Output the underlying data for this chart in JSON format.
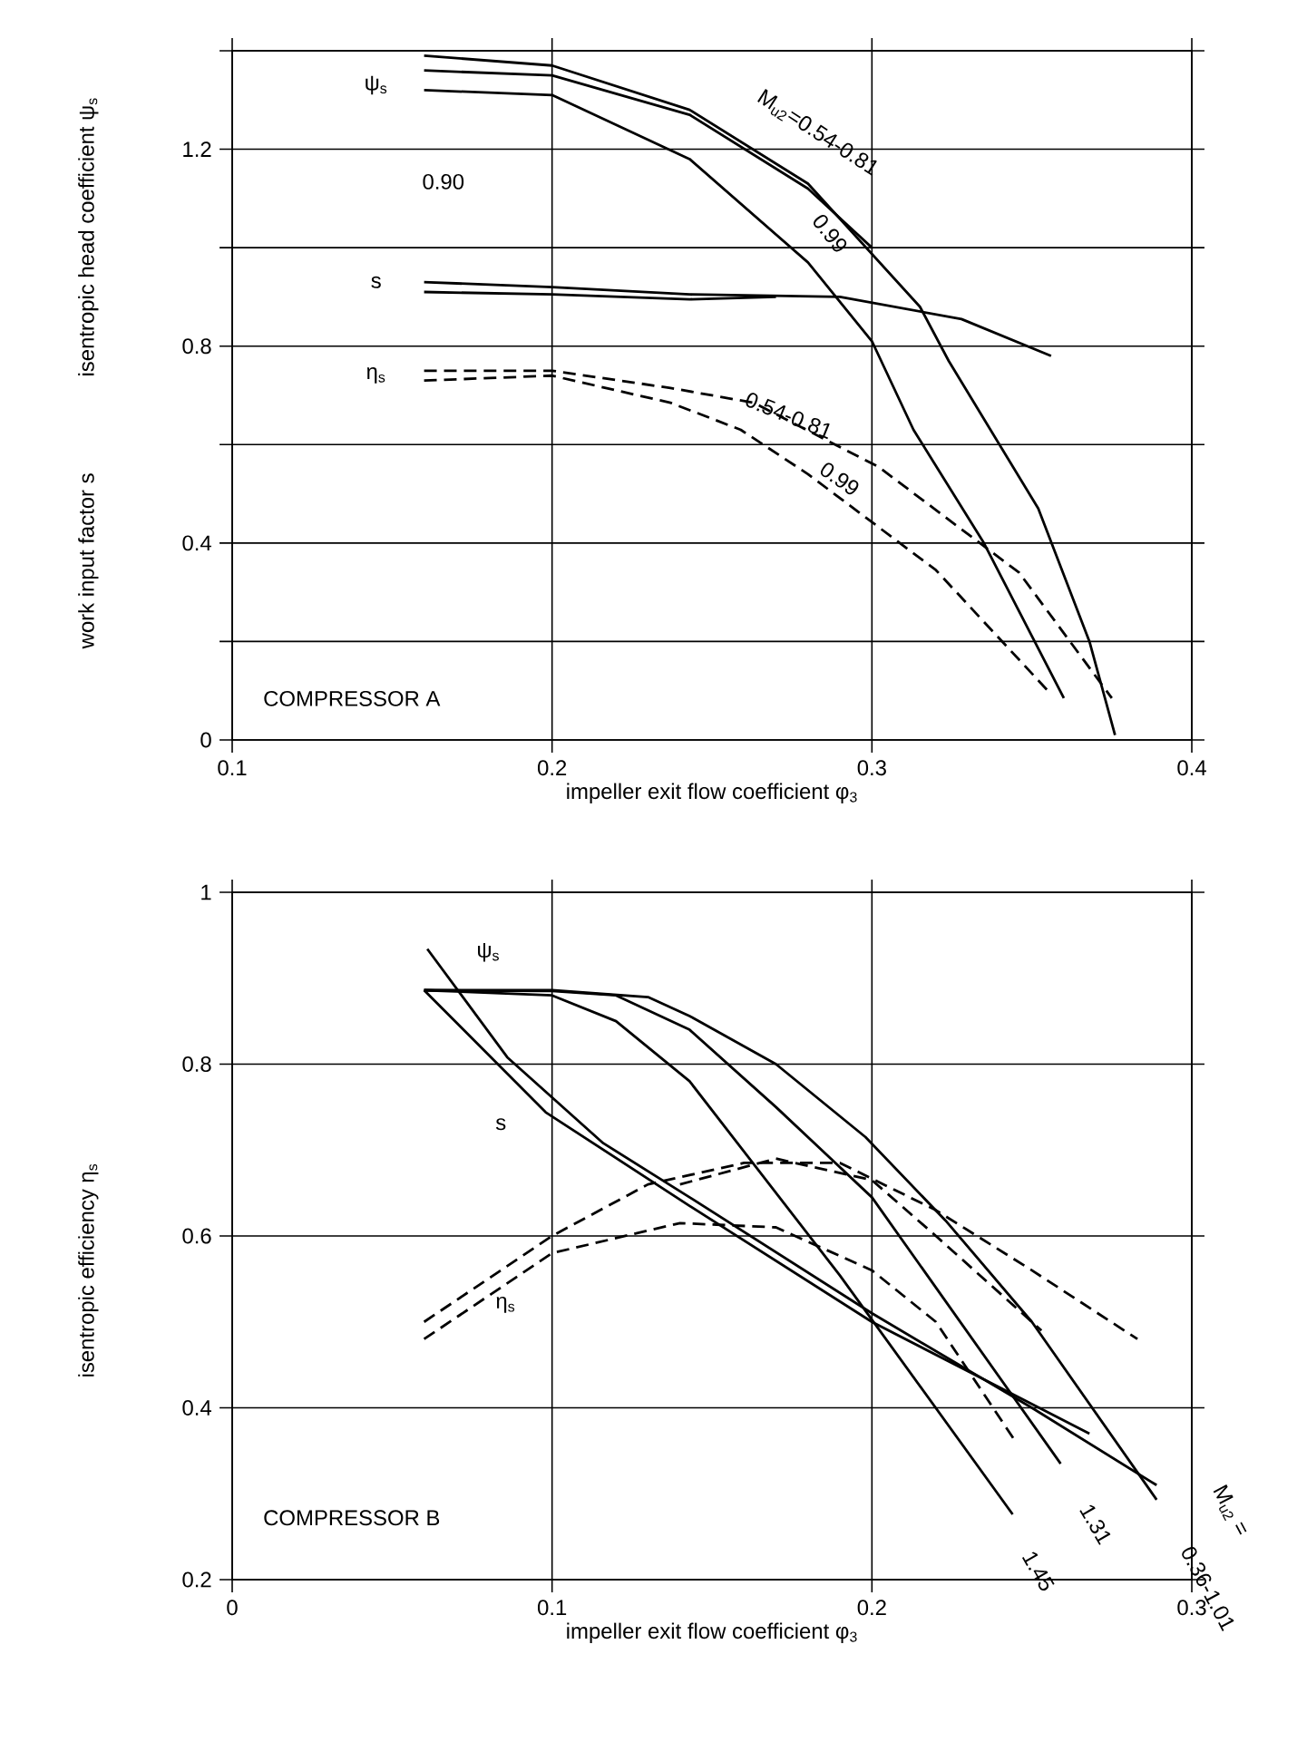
{
  "chart_data": [
    {
      "type": "line",
      "xlabel": "impeller exit flow coefficient φ$_{3}$",
      "ylabel": "isentropic head coefficient ψ$_{s}$",
      "xlim": [
        0.1,
        0.4
      ],
      "ylim": [
        0,
        1.4
      ],
      "xticks": [
        0.1,
        0.2,
        0.3,
        0.4
      ],
      "yticks": [
        0,
        {
          "value": 0.2,
          "label": null
        },
        0.4,
        {
          "value": 0.6,
          "label": null
        },
        0.8,
        {
          "value": 1.0,
          "label": null
        },
        1.2,
        {
          "value": 1.4,
          "label": null
        }
      ],
      "grid": true,
      "series": [
        {
          "color": "#000000",
          "line_style": "solid",
          "x": [
            0.16,
            0.2,
            0.243,
            0.28,
            0.315,
            0.324,
            0.352,
            0.368,
            0.376
          ],
          "values": [
            1.39,
            1.37,
            1.28,
            1.13,
            0.88,
            0.77,
            0.47,
            0.2,
            0.01
          ]
        },
        {
          "color": "#000000",
          "line_style": "solid",
          "x": [
            0.16,
            0.2,
            0.243,
            0.28,
            0.3
          ],
          "values": [
            1.36,
            1.35,
            1.27,
            1.12,
            1.0
          ]
        },
        {
          "color": "#000000",
          "line_style": "solid",
          "x": [
            0.16,
            0.2,
            0.243,
            0.28,
            0.3,
            0.313,
            0.335,
            0.36
          ],
          "values": [
            1.32,
            1.31,
            1.18,
            0.97,
            0.81,
            0.63,
            0.4,
            0.085
          ]
        },
        {
          "color": "#000000",
          "line_style": "solid",
          "x": [
            0.16,
            0.2,
            0.243,
            0.29,
            0.328,
            0.356
          ],
          "values": [
            0.93,
            0.92,
            0.905,
            0.9,
            0.855,
            0.78
          ]
        },
        {
          "color": "#000000",
          "line_style": "solid",
          "x": [
            0.16,
            0.2,
            0.243,
            0.27
          ],
          "values": [
            0.91,
            0.905,
            0.895,
            0.9
          ]
        },
        {
          "color": "#000000",
          "line_style": "dashed",
          "x": [
            0.16,
            0.2,
            0.237,
            0.263,
            0.302,
            0.346,
            0.375
          ],
          "values": [
            0.75,
            0.75,
            0.715,
            0.685,
            0.555,
            0.34,
            0.085
          ]
        },
        {
          "color": "#000000",
          "line_style": "dashed",
          "x": [
            0.16,
            0.2,
            0.237,
            0.259,
            0.28,
            0.32,
            0.355
          ],
          "values": [
            0.73,
            0.74,
            0.685,
            0.63,
            0.54,
            0.345,
            0.1
          ]
        }
      ],
      "annotations": [
        "M$_{u2}$=0.54-0.81",
        "0.90",
        "0.99",
        "ψ$_{s}$",
        "s",
        "η$_{s}$",
        "0.54-0.81",
        "0.99",
        "COMPRESSOR A",
        "work input factor s"
      ]
    },
    {
      "type": "line",
      "xlabel": "impeller exit flow coefficient φ$_{3}$",
      "ylabel": "isentropic efficiency η$_{s}$",
      "xlim": [
        0,
        0.3
      ],
      "ylim": [
        0.2,
        1.0
      ],
      "xticks": [
        0,
        0.1,
        0.2,
        0.3
      ],
      "yticks": [
        0.2,
        0.4,
        0.6,
        0.8,
        1
      ],
      "grid": true,
      "series": [
        {
          "color": "#000000",
          "line_style": "solid",
          "x": [
            0.06,
            0.1,
            0.13,
            0.143,
            0.17,
            0.198,
            0.223,
            0.25,
            0.289
          ],
          "values": [
            0.886,
            0.886,
            0.878,
            0.856,
            0.8,
            0.715,
            0.618,
            0.5,
            0.293
          ]
        },
        {
          "color": "#000000",
          "line_style": "solid",
          "x": [
            0.06,
            0.1,
            0.12,
            0.143,
            0.17,
            0.2,
            0.259
          ],
          "values": [
            0.886,
            0.885,
            0.88,
            0.84,
            0.75,
            0.645,
            0.335
          ]
        },
        {
          "color": "#000000",
          "line_style": "solid",
          "x": [
            0.06,
            0.1,
            0.12,
            0.143,
            0.19,
            0.244
          ],
          "values": [
            0.886,
            0.88,
            0.85,
            0.78,
            0.554,
            0.276
          ]
        },
        {
          "color": "#000000",
          "line_style": "solid",
          "x": [
            0.061,
            0.086,
            0.116,
            0.143,
            0.2,
            0.25,
            0.289
          ],
          "values": [
            0.934,
            0.808,
            0.708,
            0.645,
            0.51,
            0.4,
            0.31
          ]
        },
        {
          "color": "#000000",
          "line_style": "solid",
          "x": [
            0.06,
            0.098,
            0.143,
            0.2,
            0.268
          ],
          "values": [
            0.886,
            0.744,
            0.635,
            0.5,
            0.37
          ]
        },
        {
          "color": "#000000",
          "line_style": "dashed",
          "x": [
            0.06,
            0.1,
            0.13,
            0.16,
            0.19,
            0.22,
            0.25,
            0.283
          ],
          "values": [
            0.5,
            0.6,
            0.66,
            0.685,
            0.685,
            0.63,
            0.56,
            0.48
          ]
        },
        {
          "color": "#000000",
          "line_style": "dashed",
          "x": [
            0.06,
            0.1,
            0.14,
            0.17,
            0.2,
            0.22,
            0.245
          ],
          "values": [
            0.48,
            0.58,
            0.615,
            0.61,
            0.56,
            0.5,
            0.36
          ]
        },
        {
          "color": "#000000",
          "line_style": "dashed",
          "x": [
            0.14,
            0.17,
            0.2,
            0.22,
            0.253
          ],
          "values": [
            0.66,
            0.69,
            0.665,
            0.6,
            0.49
          ]
        }
      ],
      "annotations": [
        "ψ$_{s}$",
        "s",
        "η$_{s}$",
        "1.31",
        "1.45",
        "M$_{u2}$ =",
        "0.36-1.01",
        "COMPRESSOR B"
      ]
    }
  ]
}
